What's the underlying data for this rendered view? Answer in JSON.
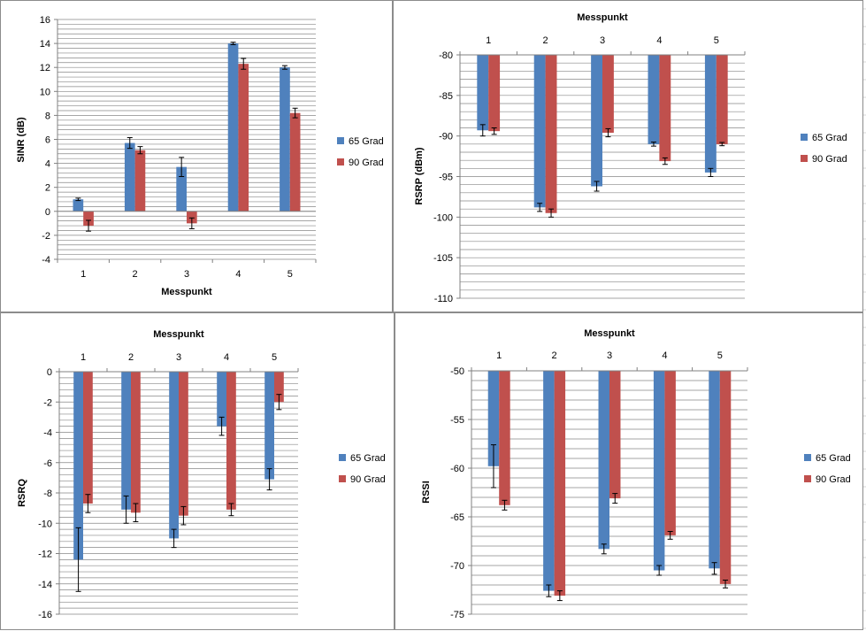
{
  "colors": {
    "series_65": "#4f81bd",
    "series_90": "#c0504d",
    "grid": "#888888",
    "axis": "#808080",
    "text": "#000000",
    "sheet_grid": "#d4d4d4"
  },
  "chart_data": [
    {
      "type": "bar",
      "title": "",
      "xlabel": "Messpunkt",
      "ylabel": "SINR (dB)",
      "categories": [
        "1",
        "2",
        "3",
        "4",
        "5"
      ],
      "category_axis_position": "bottom",
      "ylim": [
        -4,
        16
      ],
      "ytick_labels": [
        "-4",
        "-2",
        "0",
        "2",
        "4",
        "6",
        "8",
        "10",
        "12",
        "14",
        "16"
      ],
      "grid": true,
      "legend": "right",
      "series": [
        {
          "name": "65 Grad",
          "values": [
            1.0,
            5.7,
            3.7,
            14.0,
            12.0
          ],
          "errors": [
            0.1,
            0.45,
            0.8,
            0.1,
            0.15
          ]
        },
        {
          "name": "90 Grad",
          "values": [
            -1.2,
            5.1,
            -1.0,
            12.3,
            8.2
          ],
          "errors": [
            0.45,
            0.3,
            0.45,
            0.45,
            0.4
          ]
        }
      ]
    },
    {
      "type": "bar",
      "title": "Messpunkt",
      "xlabel": "",
      "ylabel": "RSRP (dBm)",
      "categories": [
        "1",
        "2",
        "3",
        "4",
        "5"
      ],
      "category_axis_position": "top",
      "ylim": [
        -110,
        -80
      ],
      "ytick_labels": [
        "-110",
        "-105",
        "-100",
        "-95",
        "-90",
        "-85",
        "-80"
      ],
      "grid": true,
      "legend": "right",
      "series": [
        {
          "name": "65 Grad",
          "values": [
            -89.3,
            -98.8,
            -96.2,
            -91.0,
            -94.5
          ],
          "errors": [
            0.7,
            0.5,
            0.6,
            0.25,
            0.5
          ]
        },
        {
          "name": "90 Grad",
          "values": [
            -89.4,
            -99.5,
            -89.6,
            -93.1,
            -91.0
          ],
          "errors": [
            0.4,
            0.5,
            0.5,
            0.4,
            0.2
          ]
        }
      ]
    },
    {
      "type": "bar",
      "title": "Messpunkt",
      "xlabel": "",
      "ylabel": "RSRQ",
      "categories": [
        "1",
        "2",
        "3",
        "4",
        "5"
      ],
      "category_axis_position": "top",
      "ylim": [
        -16,
        0
      ],
      "ytick_labels": [
        "-16",
        "-14",
        "-12",
        "-10",
        "-8",
        "-6",
        "-4",
        "-2",
        "0"
      ],
      "grid": true,
      "legend": "right",
      "series": [
        {
          "name": "65 Grad",
          "values": [
            -12.4,
            -9.1,
            -11.0,
            -3.6,
            -7.1
          ],
          "errors": [
            2.1,
            0.9,
            0.6,
            0.6,
            0.7
          ]
        },
        {
          "name": "90 Grad",
          "values": [
            -8.7,
            -9.3,
            -9.5,
            -9.1,
            -2.0
          ],
          "errors": [
            0.6,
            0.6,
            0.6,
            0.4,
            0.5
          ]
        }
      ]
    },
    {
      "type": "bar",
      "title": "Messpunkt",
      "xlabel": "",
      "ylabel": "RSSI",
      "categories": [
        "1",
        "2",
        "3",
        "4",
        "5"
      ],
      "category_axis_position": "top",
      "ylim": [
        -75,
        -50
      ],
      "ytick_labels": [
        "-75",
        "-70",
        "-65",
        "-60",
        "-55",
        "-50"
      ],
      "grid": true,
      "legend": "right",
      "series": [
        {
          "name": "65 Grad",
          "values": [
            -59.8,
            -72.6,
            -68.3,
            -70.5,
            -70.3
          ],
          "errors": [
            2.2,
            0.6,
            0.5,
            0.5,
            0.6
          ]
        },
        {
          "name": "90 Grad",
          "values": [
            -63.8,
            -73.1,
            -63.1,
            -66.9,
            -71.9
          ],
          "errors": [
            0.5,
            0.5,
            0.5,
            0.4,
            0.4
          ]
        }
      ]
    }
  ]
}
